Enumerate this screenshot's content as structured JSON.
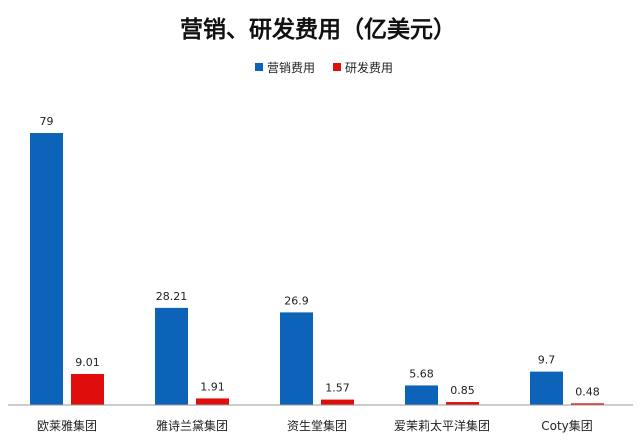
{
  "chart_data": {
    "type": "bar",
    "title": "营销、研发费用（亿美元）",
    "categories": [
      "欧莱雅集团",
      "雅诗兰黛集团",
      "资生堂集团",
      "爱茉莉太平洋集团",
      "Coty集团"
    ],
    "series": [
      {
        "name": "营销费用",
        "color": "#0d63b8",
        "values": [
          79,
          28.21,
          26.9,
          5.68,
          9.7
        ],
        "labels": [
          "79",
          "28.21",
          "26.9",
          "5.68",
          "9.7"
        ]
      },
      {
        "name": "研发费用",
        "color": "#e00d0d",
        "values": [
          9.01,
          1.91,
          1.57,
          0.85,
          0.48
        ],
        "labels": [
          "9.01",
          "1.91",
          "1.57",
          "0.85",
          "0.48"
        ]
      }
    ],
    "ylim": [
      0,
      79
    ],
    "grid": false,
    "legend": "top-center",
    "xlabel": "",
    "ylabel": ""
  }
}
